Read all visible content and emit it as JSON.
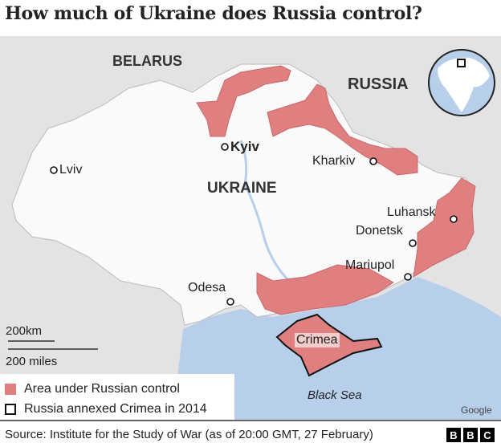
{
  "title": "How much of Ukraine does Russia control?",
  "map": {
    "labels": {
      "belarus": "BELARUS",
      "russia": "RUSSIA",
      "ukraine": "UKRAINE",
      "kyiv": "Kyiv",
      "lviv": "Lviv",
      "kharkiv": "Kharkiv",
      "luhansk": "Luhansk",
      "donetsk": "Donetsk",
      "mariupol": "Mariupol",
      "odesa": "Odesa",
      "crimea": "Crimea",
      "black_sea": "Black  Sea"
    },
    "scale": {
      "km": "200km",
      "miles": "200 miles"
    },
    "attribution": "Google",
    "colors": {
      "russian_control": "#e07f7f",
      "sea": "#b7cfea",
      "ukraine": "#fafafa",
      "other_land": "#e3e3e3"
    }
  },
  "legend": {
    "items": [
      {
        "label": "Area under Russian control",
        "color": "#e07f7f"
      },
      {
        "label": "Russia annexed Crimea in 2014",
        "color": "#ffffff"
      }
    ]
  },
  "footer": {
    "source": "Source: Institute for the Study of War (as of 20:00 GMT, 27 February)",
    "logo": [
      "B",
      "B",
      "C"
    ]
  }
}
